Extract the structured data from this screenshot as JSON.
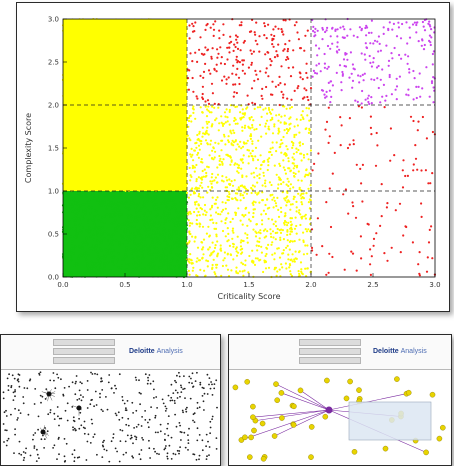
{
  "chart_data": {
    "type": "scatter",
    "title": "",
    "xlabel": "Criticality Score",
    "ylabel": "Complexity Score",
    "xlim": [
      0.0,
      3.0
    ],
    "ylim": [
      0.0,
      3.0
    ],
    "x_ticks": [
      "0.0",
      "0.5",
      "1.0",
      "1.5",
      "2.0",
      "2.5",
      "3.0"
    ],
    "y_ticks": [
      "0.0",
      "0.5",
      "1.0",
      "1.5",
      "2.0",
      "2.5",
      "3.0"
    ],
    "grid": false,
    "threshold_lines": {
      "x": [
        1.0,
        2.0
      ],
      "y": [
        1.0,
        2.0
      ],
      "style": "dashed"
    },
    "background": "#ffffff",
    "regions": [
      {
        "x_range": [
          0,
          1
        ],
        "y_range": [
          0,
          1
        ],
        "color": "#11c011",
        "density": "very high"
      },
      {
        "x_range": [
          0,
          1
        ],
        "y_range": [
          1,
          2
        ],
        "color": "#ffff00",
        "density": "very high"
      },
      {
        "x_range": [
          0,
          1
        ],
        "y_range": [
          2,
          3
        ],
        "color": "#ffff00",
        "density": "very high"
      },
      {
        "x_range": [
          1,
          2
        ],
        "y_range": [
          0,
          1
        ],
        "color": "#ffff00",
        "density": "high"
      },
      {
        "x_range": [
          1,
          2
        ],
        "y_range": [
          1,
          2
        ],
        "color": "#ffff00",
        "density": "high"
      },
      {
        "x_range": [
          1,
          2
        ],
        "y_range": [
          2,
          3
        ],
        "color": "#ee2222",
        "density": "medium"
      },
      {
        "x_range": [
          2,
          3
        ],
        "y_range": [
          0,
          1
        ],
        "color": "#ee2222",
        "density": "low"
      },
      {
        "x_range": [
          2,
          3
        ],
        "y_range": [
          1,
          2
        ],
        "color": "#ee2222",
        "density": "low"
      },
      {
        "x_range": [
          2,
          3
        ],
        "y_range": [
          2,
          3
        ],
        "color": "#cc44ee",
        "density": "medium"
      }
    ]
  },
  "thumbnails": [
    {
      "logo_bold": "Deloitte",
      "logo_thin": "Analysis",
      "nodes_color": "#222222",
      "background": "#ffffff"
    },
    {
      "logo_bold": "Deloitte",
      "logo_thin": "Analysis",
      "nodes_color": "#e8d400",
      "link_color": "#7a2aa0",
      "background": "#ffffff"
    }
  ]
}
